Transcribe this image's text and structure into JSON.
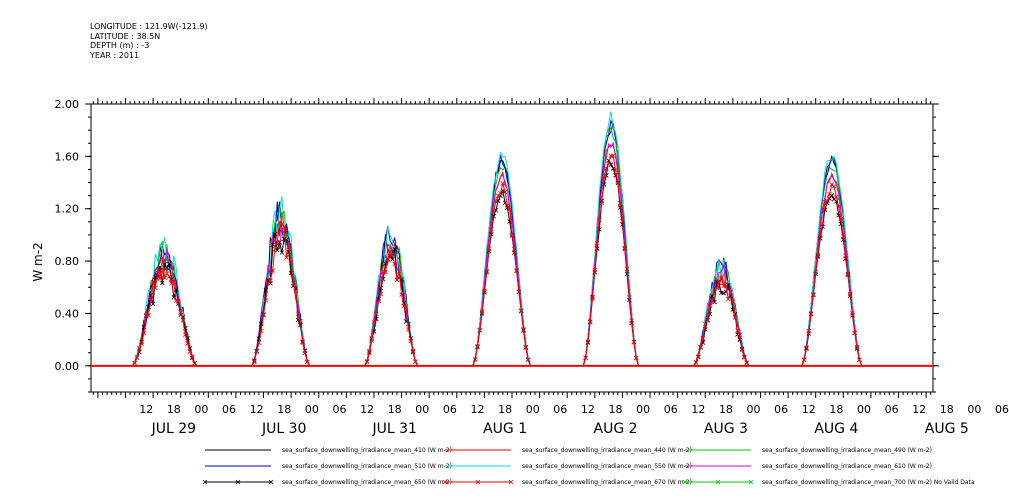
{
  "header": {
    "longitude": "LONGITUDE : 121.9W(-121.9)",
    "latitude": "LATITUDE : 38.5N",
    "depth": "DEPTH (m) : -3",
    "year": "YEAR : 2011"
  },
  "chart_data": {
    "type": "line",
    "ylabel": "W m-2",
    "ylim": [
      -0.2,
      2.0
    ],
    "yticks": [
      "0.00",
      "0.40",
      "0.80",
      "1.20",
      "1.60",
      "2.00"
    ],
    "xlim_hours": [
      -7.5,
      175.5
    ],
    "x_start": "2011-07-29 07:30",
    "x_hour_ticks": [
      "12",
      "18",
      "00",
      "06",
      "12",
      "18",
      "00",
      "06",
      "12",
      "18",
      "00",
      "06",
      "12",
      "18",
      "00",
      "06",
      "12",
      "18",
      "00",
      "06",
      "12",
      "18",
      "00",
      "06",
      "12",
      "18",
      "00",
      "06",
      "12",
      "18",
      "00",
      "06"
    ],
    "day_labels": [
      "JUL 29",
      "JUL 30",
      "JUL 31",
      "AUG 1",
      "AUG 2",
      "AUG 3",
      "AUG 4",
      "AUG 5"
    ],
    "days": [
      {
        "date": "JUL 29",
        "peak": 0.72,
        "start_hour": 9.0,
        "end_hour": 23.0,
        "noisy": true
      },
      {
        "date": "JUL 30",
        "peak": 0.95,
        "start_hour": 11.0,
        "end_hour": 23.5,
        "noisy": true
      },
      {
        "date": "JUL 31",
        "peak": 0.82,
        "start_hour": 11.5,
        "end_hour": 23.0,
        "noisy": true
      },
      {
        "date": "AUG 1",
        "peak": 1.32,
        "start_hour": 11.0,
        "end_hour": 23.5,
        "noisy": false
      },
      {
        "date": "AUG 2",
        "peak": 1.55,
        "start_hour": 11.0,
        "end_hour": 23.0,
        "noisy": false
      },
      {
        "date": "AUG 3",
        "peak": 0.62,
        "start_hour": 11.0,
        "end_hour": 23.0,
        "noisy": true
      },
      {
        "date": "AUG 4",
        "peak": 1.32,
        "start_hour": 10.5,
        "end_hour": 23.5,
        "noisy": false
      }
    ],
    "series": [
      {
        "name": "sea_surface_downwelling_irradiance_mean_410 (W m-2)",
        "color": "#000000",
        "scale": 1.18,
        "marker": "none"
      },
      {
        "name": "sea_surface_downwelling_irradiance_mean_440 (W m-2)",
        "color": "#ff0000",
        "scale": 1.1,
        "marker": "none"
      },
      {
        "name": "sea_surface_downwelling_irradiance_mean_490 (W m-2)",
        "color": "#00cc00",
        "scale": 1.17,
        "marker": "none"
      },
      {
        "name": "sea_surface_downwelling_irradiance_mean_510 (W m-2)",
        "color": "#0000cc",
        "scale": 1.19,
        "marker": "none"
      },
      {
        "name": "sea_surface_downwelling_irradiance_mean_550 (W m-2)",
        "color": "#00dddd",
        "scale": 1.22,
        "marker": "none"
      },
      {
        "name": "sea_surface_downwelling_irradiance_mean_610 (W m-2)",
        "color": "#dd00dd",
        "scale": 1.1,
        "marker": "none"
      },
      {
        "name": "sea_surface_downwelling_irradiance_mean_650 (W m-2)",
        "color": "#000000",
        "scale": 1.0,
        "marker": "x"
      },
      {
        "name": "sea_surface_downwelling_irradiance_mean_670 (W m-2)",
        "color": "#ff0000",
        "scale": 1.03,
        "marker": "x"
      },
      {
        "name": "sea_surface_downwelling_irradiance_mean_700 (W m-2) No Valid Data",
        "color": "#00cc00",
        "scale": 0,
        "marker": "x"
      }
    ]
  }
}
